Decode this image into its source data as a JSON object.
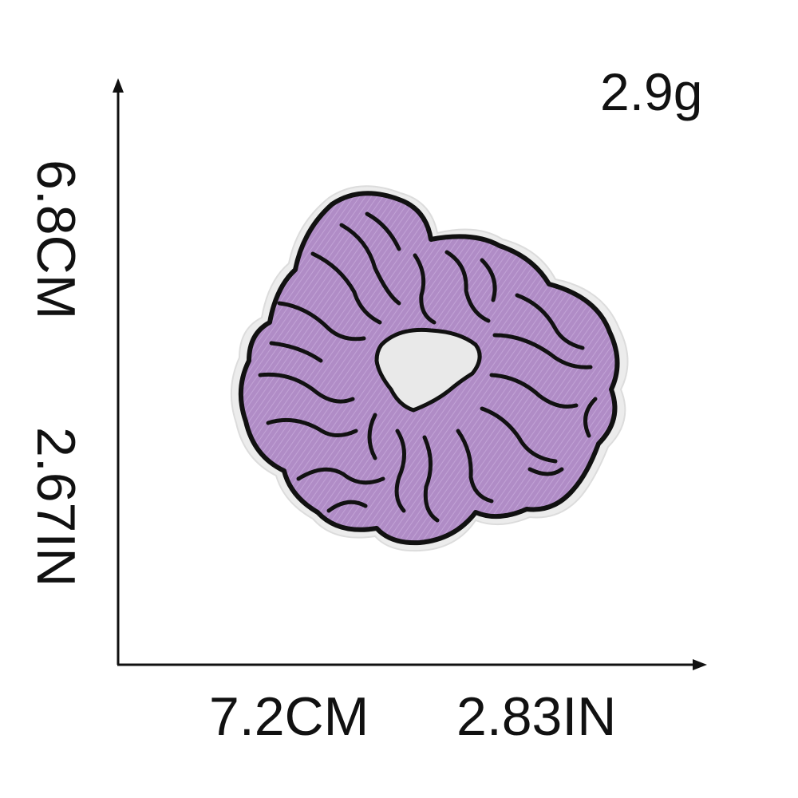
{
  "product": {
    "weight": "2.9g",
    "width_cm": "7.2CM",
    "width_in": "2.83IN",
    "height_cm": "6.8CM",
    "height_in": "2.67IN"
  },
  "colors": {
    "fabric": "#b08cc6",
    "outline": "#111111",
    "edge": "#ededed",
    "background": "#ffffff"
  }
}
